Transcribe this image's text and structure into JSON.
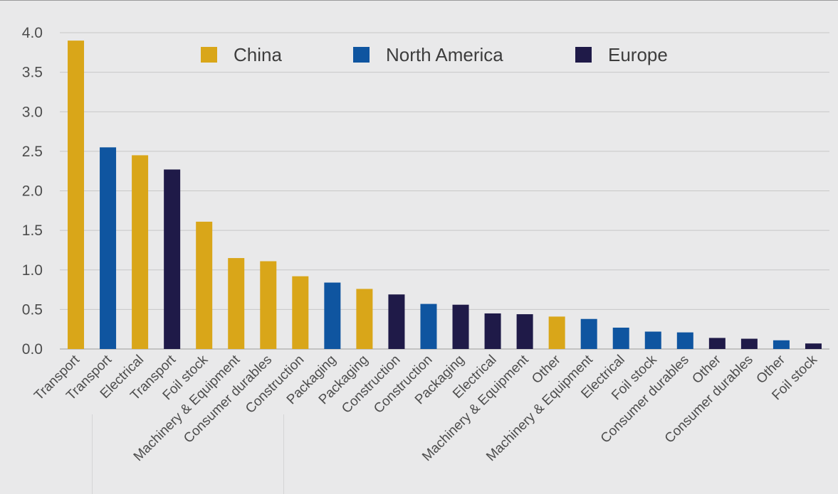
{
  "chart_data": {
    "type": "bar",
    "title": "",
    "xlabel": "",
    "ylabel": "",
    "ylim": [
      0,
      4.0
    ],
    "yticks": [
      "0.0",
      "0.5",
      "1.0",
      "1.5",
      "2.0",
      "2.5",
      "3.0",
      "3.5",
      "4.0"
    ],
    "grid": true,
    "legend_position": "top",
    "series_colors": {
      "China": "#d9a619",
      "North America": "#0f55a0",
      "Europe": "#1f1a48"
    },
    "legend": [
      {
        "name": "China",
        "color": "#d9a619"
      },
      {
        "name": "North America",
        "color": "#0f55a0"
      },
      {
        "name": "Europe",
        "color": "#1f1a48"
      }
    ],
    "bars": [
      {
        "category": "Transport",
        "series": "China",
        "value": 3.9
      },
      {
        "category": "Transport",
        "series": "North America",
        "value": 2.55
      },
      {
        "category": "Electrical",
        "series": "China",
        "value": 2.45
      },
      {
        "category": "Transport",
        "series": "Europe",
        "value": 2.27
      },
      {
        "category": "Foil stock",
        "series": "China",
        "value": 1.61
      },
      {
        "category": "Machinery & Equipment",
        "series": "China",
        "value": 1.15
      },
      {
        "category": "Consumer durables",
        "series": "China",
        "value": 1.11
      },
      {
        "category": "Construction",
        "series": "China",
        "value": 0.92
      },
      {
        "category": "Packaging",
        "series": "North America",
        "value": 0.84
      },
      {
        "category": "Packaging",
        "series": "China",
        "value": 0.76
      },
      {
        "category": "Construction",
        "series": "Europe",
        "value": 0.69
      },
      {
        "category": "Construction",
        "series": "North America",
        "value": 0.57
      },
      {
        "category": "Packaging",
        "series": "Europe",
        "value": 0.56
      },
      {
        "category": "Electrical",
        "series": "Europe",
        "value": 0.45
      },
      {
        "category": "Machinery & Equipment",
        "series": "Europe",
        "value": 0.44
      },
      {
        "category": "Other",
        "series": "China",
        "value": 0.41
      },
      {
        "category": "Machinery & Equipment",
        "series": "North America",
        "value": 0.38
      },
      {
        "category": "Electrical",
        "series": "North America",
        "value": 0.27
      },
      {
        "category": "Foil stock",
        "series": "North America",
        "value": 0.22
      },
      {
        "category": "Consumer durables",
        "series": "North America",
        "value": 0.21
      },
      {
        "category": "Other",
        "series": "Europe",
        "value": 0.14
      },
      {
        "category": "Consumer durables",
        "series": "Europe",
        "value": 0.13
      },
      {
        "category": "Other",
        "series": "North America",
        "value": 0.11
      },
      {
        "category": "Foil stock",
        "series": "Europe",
        "value": 0.07
      }
    ]
  }
}
